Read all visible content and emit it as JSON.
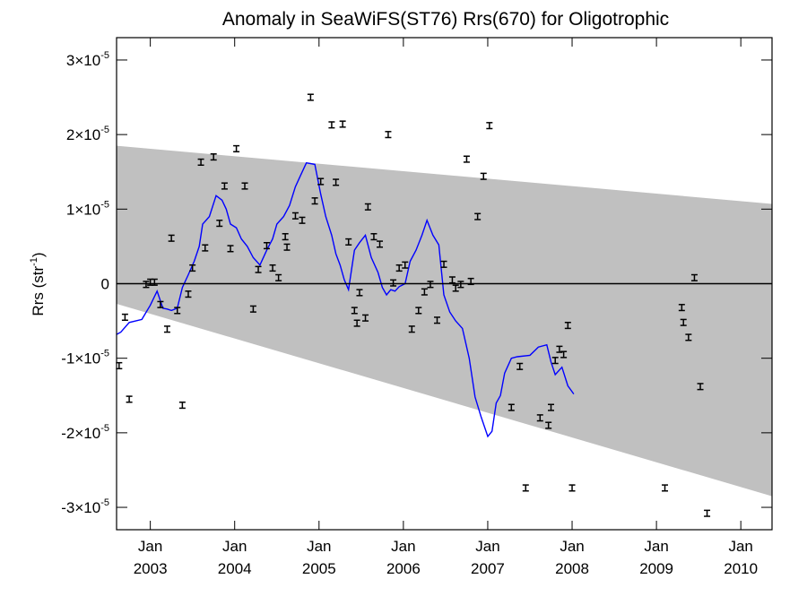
{
  "chart_data": {
    "type": "scatter",
    "title": "Anomaly in SeaWiFS(ST76) Rrs(670) for Oligotrophic",
    "ylabel": {
      "base": "Rrs (str",
      "sup": "-1",
      "end": ")"
    },
    "xlabel": "",
    "xlim": [
      2002.6,
      2010.37
    ],
    "ylim": [
      -3.3e-05,
      3.3e-05
    ],
    "grid": false,
    "x_ticks": [
      {
        "x": 2003.0,
        "month": "Jan",
        "year": "2003"
      },
      {
        "x": 2004.0,
        "month": "Jan",
        "year": "2004"
      },
      {
        "x": 2005.0,
        "month": "Jan",
        "year": "2005"
      },
      {
        "x": 2006.0,
        "month": "Jan",
        "year": "2006"
      },
      {
        "x": 2007.0,
        "month": "Jan",
        "year": "2007"
      },
      {
        "x": 2008.0,
        "month": "Jan",
        "year": "2008"
      },
      {
        "x": 2009.0,
        "month": "Jan",
        "year": "2009"
      },
      {
        "x": 2010.0,
        "month": "Jan",
        "year": "2010"
      }
    ],
    "y_ticks": [
      {
        "y": 3e-05,
        "mant": "3×10",
        "exp": "-5"
      },
      {
        "y": 2e-05,
        "mant": "2×10",
        "exp": "-5"
      },
      {
        "y": 1e-05,
        "mant": "1×10",
        "exp": "-5"
      },
      {
        "y": 0,
        "mant": "0",
        "exp": ""
      },
      {
        "y": -1e-05,
        "mant": "-1×10",
        "exp": "-5"
      },
      {
        "y": -2e-05,
        "mant": "-2×10",
        "exp": "-5"
      },
      {
        "y": -3e-05,
        "mant": "-3×10",
        "exp": "-5"
      }
    ],
    "band": {
      "color": "#c0c0c0",
      "upper": [
        [
          2002.6,
          1.85e-05
        ],
        [
          2010.37,
          1.07e-05
        ]
      ],
      "lower": [
        [
          2002.6,
          -2.7e-06
        ],
        [
          2010.37,
          -2.85e-05
        ]
      ]
    },
    "zero_line": 0,
    "points": [
      [
        2002.63,
        -1.1e-05
      ],
      [
        2002.7,
        -4.5e-06
      ],
      [
        2002.75,
        -1.55e-05
      ],
      [
        2002.95,
        -1e-07
      ],
      [
        2003.0,
        2e-07
      ],
      [
        2003.05,
        2e-07
      ],
      [
        2003.12,
        -2.8e-06
      ],
      [
        2003.2,
        -6.1e-06
      ],
      [
        2003.25,
        6.1e-06
      ],
      [
        2003.32,
        -3.6e-06
      ],
      [
        2003.38,
        -1.63e-05
      ],
      [
        2003.45,
        -1.4e-06
      ],
      [
        2003.5,
        2.1e-06
      ],
      [
        2003.6,
        1.63e-05
      ],
      [
        2003.65,
        4.8e-06
      ],
      [
        2003.75,
        1.7e-05
      ],
      [
        2003.82,
        8.1e-06
      ],
      [
        2003.88,
        1.31e-05
      ],
      [
        2003.95,
        4.7e-06
      ],
      [
        2004.02,
        1.81e-05
      ],
      [
        2004.12,
        1.31e-05
      ],
      [
        2004.22,
        -3.4e-06
      ],
      [
        2004.28,
        1.9e-06
      ],
      [
        2004.38,
        5.1e-06
      ],
      [
        2004.45,
        2.1e-06
      ],
      [
        2004.52,
        8e-07
      ],
      [
        2004.6,
        6.3e-06
      ],
      [
        2004.62,
        4.9e-06
      ],
      [
        2004.72,
        9.1e-06
      ],
      [
        2004.8,
        8.5e-06
      ],
      [
        2004.9,
        2.5e-05
      ],
      [
        2004.95,
        1.11e-05
      ],
      [
        2005.02,
        1.37e-05
      ],
      [
        2005.15,
        2.13e-05
      ],
      [
        2005.2,
        1.36e-05
      ],
      [
        2005.28,
        2.14e-05
      ],
      [
        2005.35,
        5.6e-06
      ],
      [
        2005.42,
        -3.6e-06
      ],
      [
        2005.45,
        -5.3e-06
      ],
      [
        2005.48,
        -1.2e-06
      ],
      [
        2005.55,
        -4.6e-06
      ],
      [
        2005.58,
        1.03e-05
      ],
      [
        2005.65,
        6.3e-06
      ],
      [
        2005.72,
        5.3e-06
      ],
      [
        2005.82,
        2e-05
      ],
      [
        2005.88,
        1e-07
      ],
      [
        2005.95,
        2.1e-06
      ],
      [
        2006.02,
        2.5e-06
      ],
      [
        2006.1,
        -6.1e-06
      ],
      [
        2006.18,
        -3.6e-06
      ],
      [
        2006.25,
        -1.1e-06
      ],
      [
        2006.32,
        -1e-07
      ],
      [
        2006.4,
        -4.9e-06
      ],
      [
        2006.48,
        2.6e-06
      ],
      [
        2006.58,
        5e-07
      ],
      [
        2006.62,
        -6e-07
      ],
      [
        2006.68,
        -1e-07
      ],
      [
        2006.75,
        1.67e-05
      ],
      [
        2006.8,
        3e-07
      ],
      [
        2006.88,
        9e-06
      ],
      [
        2006.95,
        1.44e-05
      ],
      [
        2007.02,
        2.12e-05
      ],
      [
        2007.28,
        -1.66e-05
      ],
      [
        2007.38,
        -1.11e-05
      ],
      [
        2007.45,
        -2.74e-05
      ],
      [
        2007.62,
        -1.8e-05
      ],
      [
        2007.72,
        -1.9e-05
      ],
      [
        2007.75,
        -1.66e-05
      ],
      [
        2007.8,
        -1.03e-05
      ],
      [
        2007.85,
        -8.8e-06
      ],
      [
        2007.9,
        -9.5e-06
      ],
      [
        2007.95,
        -5.6e-06
      ],
      [
        2008.0,
        -2.74e-05
      ],
      [
        2009.1,
        -2.74e-05
      ],
      [
        2009.3,
        -3.2e-06
      ],
      [
        2009.32,
        -5.2e-06
      ],
      [
        2009.38,
        -7.2e-06
      ],
      [
        2009.45,
        8e-07
      ],
      [
        2009.52,
        -1.38e-05
      ],
      [
        2009.6,
        -3.08e-05
      ]
    ],
    "error_half": 4e-07,
    "smooth_line": {
      "color": "#0000ff",
      "points": [
        [
          2002.6,
          -6.8e-06
        ],
        [
          2002.65,
          -6.5e-06
        ],
        [
          2002.75,
          -5.2e-06
        ],
        [
          2002.9,
          -4.8e-06
        ],
        [
          2003.0,
          -2.9e-06
        ],
        [
          2003.08,
          -1e-06
        ],
        [
          2003.15,
          -3.3e-06
        ],
        [
          2003.2,
          -3.4e-06
        ],
        [
          2003.25,
          -3.6e-06
        ],
        [
          2003.32,
          -3.3e-06
        ],
        [
          2003.38,
          -5e-07
        ],
        [
          2003.45,
          1.2e-06
        ],
        [
          2003.52,
          3e-06
        ],
        [
          2003.58,
          5e-06
        ],
        [
          2003.62,
          8e-06
        ],
        [
          2003.7,
          9e-06
        ],
        [
          2003.78,
          1.18e-05
        ],
        [
          2003.85,
          1.12e-05
        ],
        [
          2003.9,
          1e-05
        ],
        [
          2003.95,
          8e-06
        ],
        [
          2004.02,
          7.5e-06
        ],
        [
          2004.08,
          6e-06
        ],
        [
          2004.15,
          5e-06
        ],
        [
          2004.22,
          3.5e-06
        ],
        [
          2004.3,
          2.5e-06
        ],
        [
          2004.38,
          4.5e-06
        ],
        [
          2004.45,
          6e-06
        ],
        [
          2004.5,
          8e-06
        ],
        [
          2004.58,
          9e-06
        ],
        [
          2004.65,
          1.05e-05
        ],
        [
          2004.72,
          1.3e-05
        ],
        [
          2004.78,
          1.45e-05
        ],
        [
          2004.85,
          1.62e-05
        ],
        [
          2004.95,
          1.6e-05
        ],
        [
          2005.02,
          1.2e-05
        ],
        [
          2005.08,
          9e-06
        ],
        [
          2005.15,
          6.5e-06
        ],
        [
          2005.2,
          4e-06
        ],
        [
          2005.25,
          2.5e-06
        ],
        [
          2005.3,
          5e-07
        ],
        [
          2005.35,
          -8e-07
        ],
        [
          2005.42,
          4.5e-06
        ],
        [
          2005.48,
          5.5e-06
        ],
        [
          2005.55,
          6.5e-06
        ],
        [
          2005.62,
          3.5e-06
        ],
        [
          2005.7,
          1.5e-06
        ],
        [
          2005.75,
          -5e-07
        ],
        [
          2005.8,
          -1.5e-06
        ],
        [
          2005.85,
          -8e-07
        ],
        [
          2005.9,
          -1e-06
        ],
        [
          2005.95,
          -4e-07
        ],
        [
          2006.02,
          0
        ],
        [
          2006.08,
          3e-06
        ],
        [
          2006.15,
          4.5e-06
        ],
        [
          2006.22,
          6.5e-06
        ],
        [
          2006.28,
          8.5e-06
        ],
        [
          2006.35,
          6.5e-06
        ],
        [
          2006.42,
          5.2e-06
        ],
        [
          2006.48,
          -1.5e-06
        ],
        [
          2006.55,
          -3.8e-06
        ],
        [
          2006.62,
          -5e-06
        ],
        [
          2006.7,
          -6e-06
        ],
        [
          2006.78,
          -1e-05
        ],
        [
          2006.85,
          -1.52e-05
        ],
        [
          2006.92,
          -1.78e-05
        ],
        [
          2007.0,
          -2.05e-05
        ],
        [
          2007.05,
          -1.98e-05
        ],
        [
          2007.1,
          -1.6e-05
        ],
        [
          2007.15,
          -1.5e-05
        ],
        [
          2007.2,
          -1.2e-05
        ],
        [
          2007.28,
          -1e-05
        ],
        [
          2007.35,
          -9.8e-06
        ],
        [
          2007.5,
          -9.6e-06
        ],
        [
          2007.6,
          -8.5e-06
        ],
        [
          2007.7,
          -8.2e-06
        ],
        [
          2007.75,
          -1.05e-05
        ],
        [
          2007.8,
          -1.22e-05
        ],
        [
          2007.88,
          -1.12e-05
        ],
        [
          2007.95,
          -1.37e-05
        ],
        [
          2008.02,
          -1.48e-05
        ]
      ]
    }
  }
}
